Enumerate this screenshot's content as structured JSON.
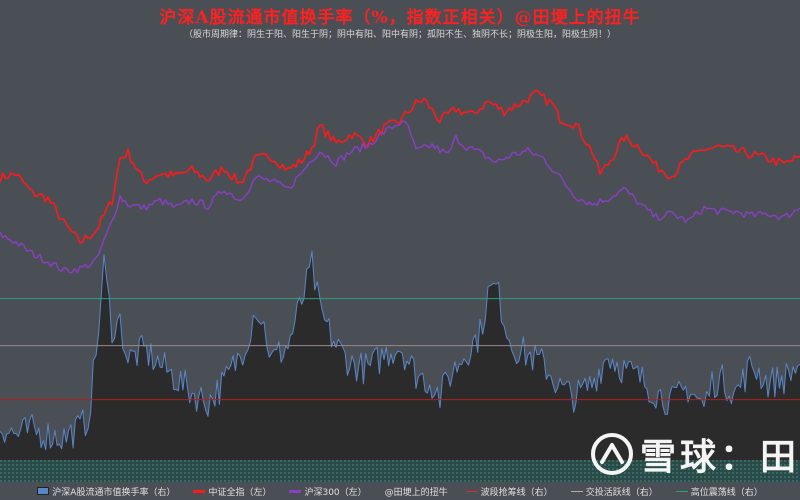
{
  "header": {
    "title": "沪深A股流通市值换手率（%，指数正相关）@田埂上的扭牛",
    "subtitle": "（股市周期律：阴生于阳、阳生于阴；阴中有阳、阳中有阴；孤阳不生、独阴不长；阴极生阳，阳极生阴！）"
  },
  "watermark": {
    "text": "雪球：田"
  },
  "legend": [
    {
      "label": "沪深A股流通市值换手率（右）",
      "color": "#5a86c8"
    },
    {
      "label": "中证全指（左）",
      "color": "#ff1a1a"
    },
    {
      "label": "沪深300（左）",
      "color": "#8a3fc4"
    },
    {
      "label": "@田埂上的扭牛",
      "color": "#e0e0e0"
    },
    {
      "label": "波段抢筹线（右）",
      "color": "#d03030"
    },
    {
      "label": "交投活跃线（右）",
      "color": "#b0b0b0"
    },
    {
      "label": "高位震荡线（右）",
      "color": "#2ea07a"
    }
  ],
  "colors": {
    "turnover": "#5a86c8",
    "csi_all": "#ff1a1a",
    "hs300": "#8a3fc4",
    "buy_line": "#b02020",
    "active_line": "#9a8a8a",
    "high_line": "#2ea07a"
  },
  "chart_data": {
    "type": "line",
    "x_range": [
      0,
      100
    ],
    "left_axis_range": [
      0,
      100
    ],
    "right_axis_range": [
      0,
      100
    ],
    "reference_lines": [
      {
        "name": "高位震荡线（右）",
        "value": 64
      },
      {
        "name": "交投活跃线（右）",
        "value": 44
      },
      {
        "name": "波段抢筹线（右）",
        "value": 21
      }
    ],
    "series": [
      {
        "name": "中证全指（左）",
        "axis": "left",
        "points": [
          [
            0,
            56
          ],
          [
            2,
            58
          ],
          [
            4,
            48
          ],
          [
            6,
            45
          ],
          [
            8,
            32
          ],
          [
            10,
            22
          ],
          [
            12,
            28
          ],
          [
            14,
            44
          ],
          [
            15,
            66
          ],
          [
            16,
            69
          ],
          [
            18,
            54
          ],
          [
            20,
            58
          ],
          [
            22,
            57
          ],
          [
            24,
            60
          ],
          [
            26,
            55
          ],
          [
            28,
            61
          ],
          [
            30,
            53
          ],
          [
            32,
            66
          ],
          [
            34,
            67
          ],
          [
            36,
            60
          ],
          [
            38,
            66
          ],
          [
            39,
            72
          ],
          [
            40,
            83
          ],
          [
            42,
            74
          ],
          [
            44,
            79
          ],
          [
            46,
            74
          ],
          [
            48,
            82
          ],
          [
            50,
            86
          ],
          [
            52,
            95
          ],
          [
            53,
            97
          ],
          [
            55,
            86
          ],
          [
            57,
            92
          ],
          [
            59,
            89
          ],
          [
            61,
            96
          ],
          [
            63,
            91
          ],
          [
            65,
            95
          ],
          [
            67,
            100
          ],
          [
            69,
            95
          ],
          [
            70,
            87
          ],
          [
            72,
            84
          ],
          [
            74,
            70
          ],
          [
            75,
            58
          ],
          [
            76,
            63
          ],
          [
            78,
            77
          ],
          [
            80,
            72
          ],
          [
            82,
            62
          ],
          [
            84,
            57
          ],
          [
            86,
            66
          ],
          [
            88,
            71
          ],
          [
            90,
            72
          ],
          [
            92,
            70
          ],
          [
            94,
            68
          ],
          [
            96,
            66
          ],
          [
            98,
            63
          ],
          [
            100,
            67
          ]
        ]
      },
      {
        "name": "沪深300（左）",
        "axis": "left",
        "points": [
          [
            0,
            26
          ],
          [
            2,
            22
          ],
          [
            4,
            16
          ],
          [
            6,
            12
          ],
          [
            8,
            7
          ],
          [
            10,
            8
          ],
          [
            12,
            12
          ],
          [
            14,
            33
          ],
          [
            15,
            46
          ],
          [
            16,
            42
          ],
          [
            18,
            40
          ],
          [
            20,
            44
          ],
          [
            22,
            40
          ],
          [
            24,
            44
          ],
          [
            26,
            41
          ],
          [
            28,
            50
          ],
          [
            30,
            44
          ],
          [
            32,
            56
          ],
          [
            34,
            54
          ],
          [
            36,
            50
          ],
          [
            38,
            60
          ],
          [
            39,
            66
          ],
          [
            40,
            70
          ],
          [
            42,
            64
          ],
          [
            44,
            70
          ],
          [
            46,
            73
          ],
          [
            48,
            80
          ],
          [
            50,
            85
          ],
          [
            51,
            83
          ],
          [
            52,
            70
          ],
          [
            54,
            73
          ],
          [
            56,
            68
          ],
          [
            57,
            77
          ],
          [
            58,
            73
          ],
          [
            60,
            69
          ],
          [
            62,
            64
          ],
          [
            64,
            68
          ],
          [
            66,
            70
          ],
          [
            68,
            66
          ],
          [
            70,
            56
          ],
          [
            72,
            46
          ],
          [
            74,
            42
          ],
          [
            76,
            45
          ],
          [
            78,
            50
          ],
          [
            80,
            42
          ],
          [
            82,
            35
          ],
          [
            84,
            37
          ],
          [
            86,
            33
          ],
          [
            88,
            40
          ],
          [
            90,
            38
          ],
          [
            92,
            38
          ],
          [
            94,
            36
          ],
          [
            96,
            37
          ],
          [
            98,
            35
          ],
          [
            100,
            40
          ]
        ]
      },
      {
        "name": "沪深A股流通市值换手率（右）",
        "axis": "right",
        "points": [
          [
            0,
            10
          ],
          [
            2,
            6
          ],
          [
            4,
            8
          ],
          [
            6,
            6
          ],
          [
            8,
            5
          ],
          [
            10,
            9
          ],
          [
            11,
            13
          ],
          [
            12,
            40
          ],
          [
            13,
            78
          ],
          [
            14,
            52
          ],
          [
            15,
            54
          ],
          [
            16,
            38
          ],
          [
            18,
            42
          ],
          [
            20,
            36
          ],
          [
            22,
            30
          ],
          [
            24,
            24
          ],
          [
            26,
            20
          ],
          [
            28,
            28
          ],
          [
            30,
            40
          ],
          [
            31,
            48
          ],
          [
            32,
            61
          ],
          [
            33,
            52
          ],
          [
            34,
            38
          ],
          [
            36,
            44
          ],
          [
            38,
            66
          ],
          [
            39,
            78
          ],
          [
            40,
            58
          ],
          [
            42,
            44
          ],
          [
            44,
            36
          ],
          [
            46,
            34
          ],
          [
            48,
            40
          ],
          [
            50,
            44
          ],
          [
            52,
            32
          ],
          [
            54,
            28
          ],
          [
            55,
            22
          ],
          [
            56,
            30
          ],
          [
            58,
            40
          ],
          [
            60,
            49
          ],
          [
            61,
            66
          ],
          [
            62,
            69
          ],
          [
            63,
            56
          ],
          [
            64,
            44
          ],
          [
            66,
            40
          ],
          [
            68,
            36
          ],
          [
            70,
            26
          ],
          [
            72,
            22
          ],
          [
            74,
            28
          ],
          [
            76,
            40
          ],
          [
            78,
            34
          ],
          [
            80,
            30
          ],
          [
            82,
            24
          ],
          [
            84,
            20
          ],
          [
            86,
            26
          ],
          [
            88,
            18
          ],
          [
            89,
            28
          ],
          [
            90,
            30
          ],
          [
            92,
            24
          ],
          [
            94,
            36
          ],
          [
            96,
            28
          ],
          [
            98,
            30
          ],
          [
            100,
            36
          ]
        ]
      }
    ]
  }
}
